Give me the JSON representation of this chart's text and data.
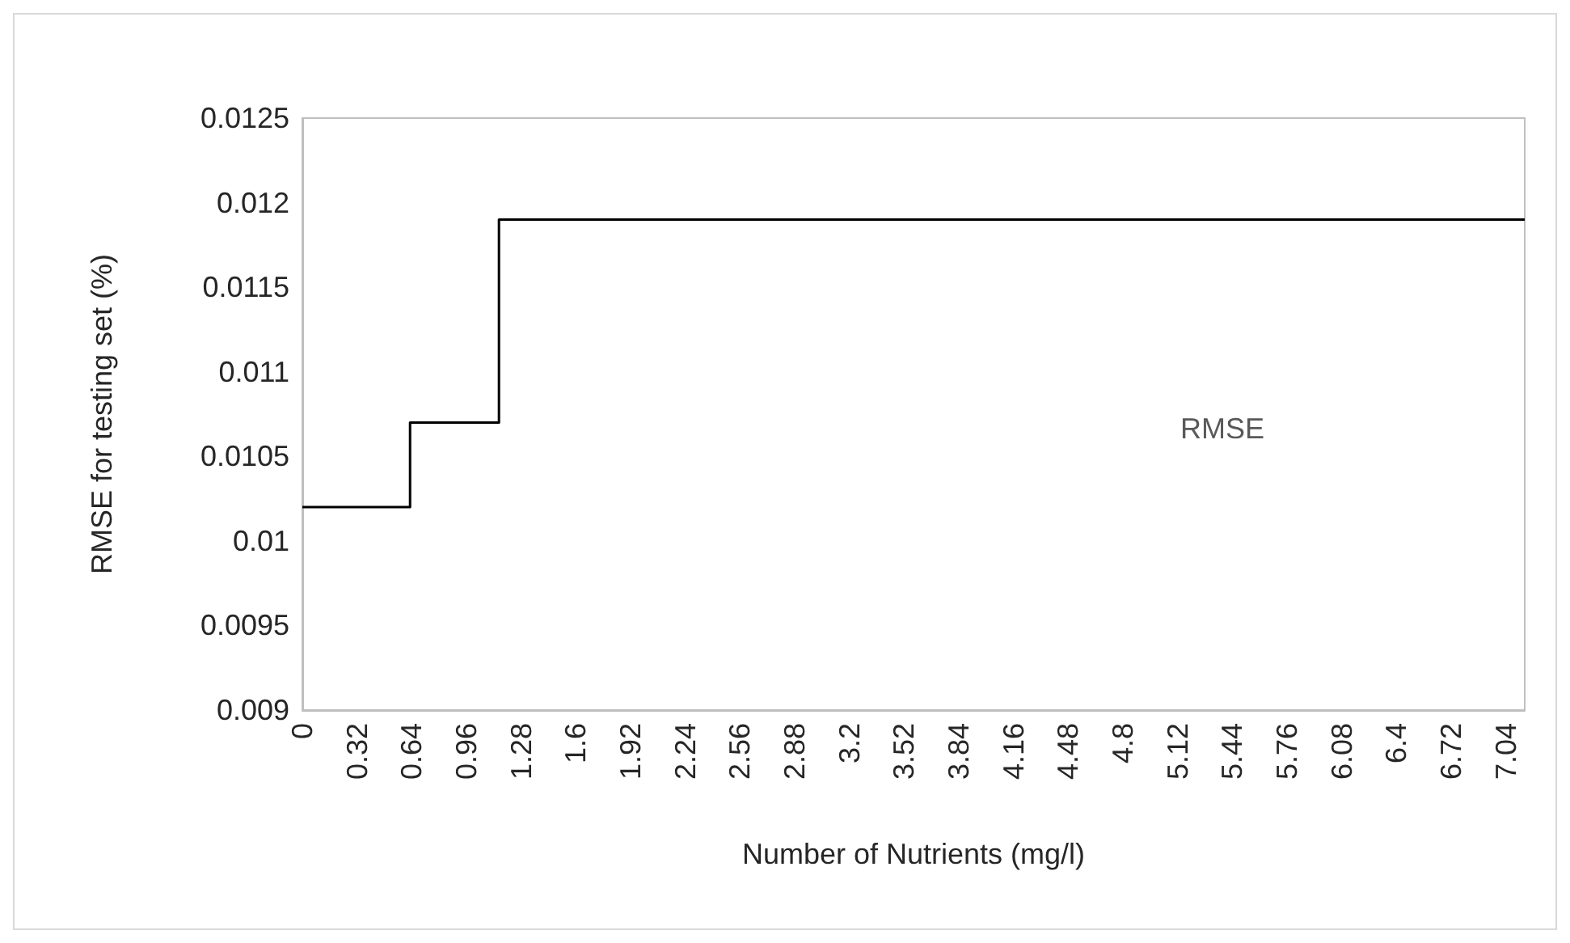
{
  "chart_data": {
    "type": "step",
    "xlabel": "Number of Nutrients (mg/l)",
    "ylabel": "RMSE for testing set (%)",
    "annotations": [
      "RMSE"
    ],
    "x": [
      0,
      0.63,
      1.15,
      7.15
    ],
    "series": [
      {
        "color": "#000000",
        "values": [
          0.0102,
          0.0107,
          0.0119,
          0.0119
        ]
      }
    ],
    "xlim": [
      0,
      7.15
    ],
    "xticks": [
      0,
      0.32,
      0.64,
      0.96,
      1.28,
      1.6,
      1.92,
      2.24,
      2.56,
      2.88,
      3.2,
      3.52,
      3.84,
      4.16,
      4.48,
      4.8,
      5.12,
      5.44,
      5.76,
      6.08,
      6.4,
      6.72,
      7.04
    ],
    "ylim": [
      0.009,
      0.0125
    ],
    "yticks": [
      0.009,
      0.0095,
      0.01,
      0.0105,
      0.011,
      0.0115,
      0.012,
      0.0125
    ],
    "grid": false,
    "marker": "none",
    "line_style": "solid"
  }
}
